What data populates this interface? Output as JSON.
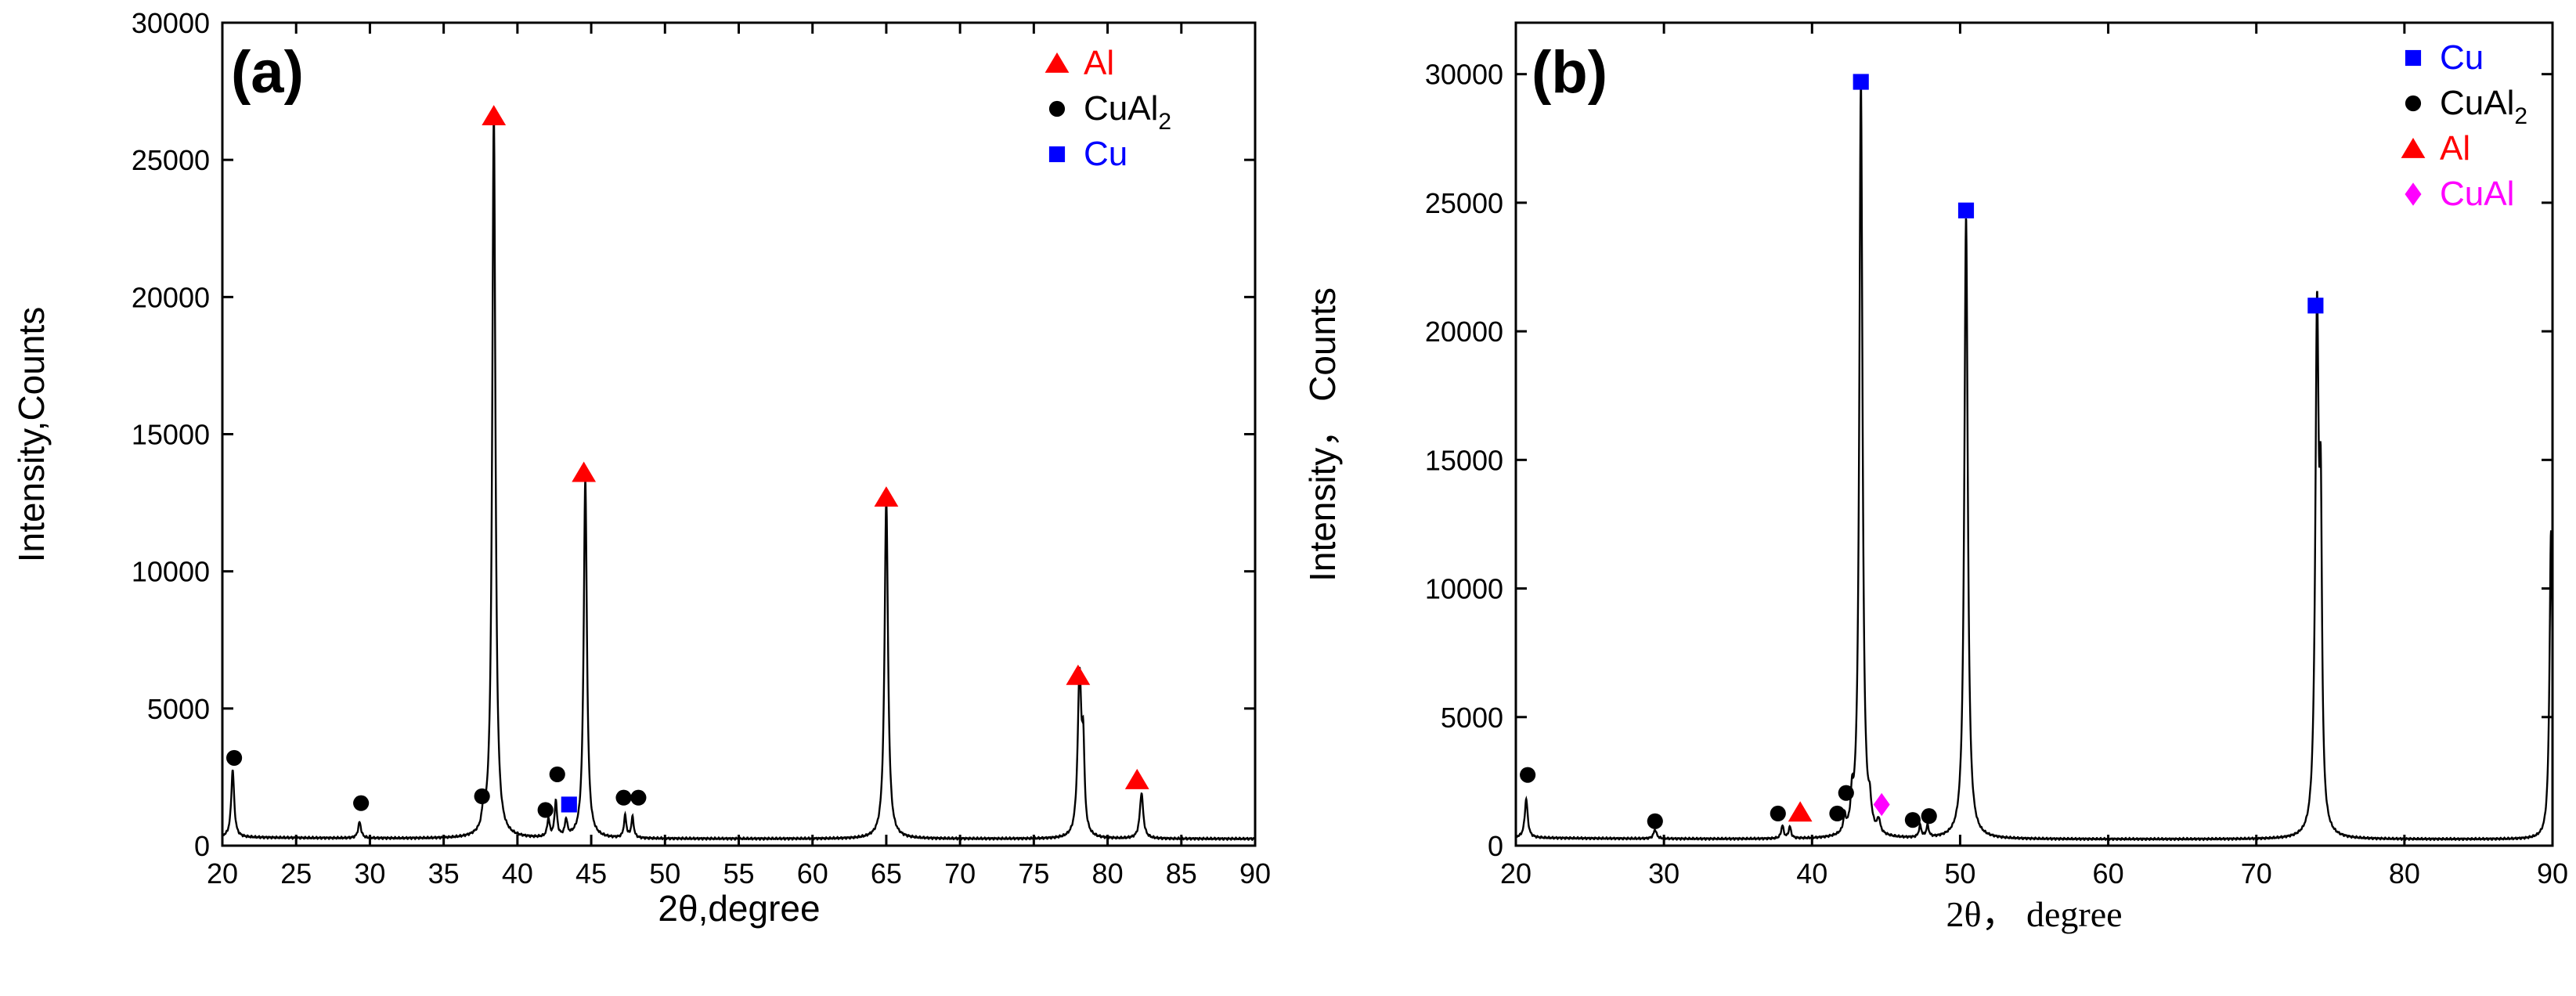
{
  "chart_data": [
    {
      "type": "line",
      "panel_label": "(a)",
      "xlabel": "2θ,degree",
      "ylabel": "Intensity,Counts",
      "xlim": [
        20,
        90
      ],
      "ylim": [
        0,
        30000
      ],
      "xticks": [
        20,
        25,
        30,
        35,
        40,
        45,
        50,
        55,
        60,
        65,
        70,
        75,
        80,
        85,
        90
      ],
      "yticks": [
        0,
        5000,
        10000,
        15000,
        20000,
        25000,
        30000
      ],
      "baseline": 250,
      "peaks": [
        {
          "x": 20.7,
          "y": 2450,
          "w": 0.12
        },
        {
          "x": 29.3,
          "y": 580,
          "w": 0.12
        },
        {
          "x": 37.7,
          "y": 700,
          "w": 0.12
        },
        {
          "x": 38.4,
          "y": 26500,
          "w": 0.13
        },
        {
          "x": 42.1,
          "y": 650,
          "w": 0.1
        },
        {
          "x": 42.6,
          "y": 1300,
          "w": 0.1
        },
        {
          "x": 43.3,
          "y": 600,
          "w": 0.1
        },
        {
          "x": 44.6,
          "y": 13100,
          "w": 0.13
        },
        {
          "x": 47.3,
          "y": 800,
          "w": 0.1
        },
        {
          "x": 47.8,
          "y": 750,
          "w": 0.1
        },
        {
          "x": 65.0,
          "y": 12400,
          "w": 0.14
        },
        {
          "x": 78.1,
          "y": 5900,
          "w": 0.15
        },
        {
          "x": 78.35,
          "y": 2800,
          "w": 0.1
        },
        {
          "x": 82.3,
          "y": 1650,
          "w": 0.14
        }
      ],
      "markers": [
        {
          "phase": "Al",
          "x": 38.4,
          "y": 26600
        },
        {
          "phase": "Al",
          "x": 44.5,
          "y": 13600
        },
        {
          "phase": "Al",
          "x": 65.0,
          "y": 12700
        },
        {
          "phase": "Al",
          "x": 78.0,
          "y": 6200
        },
        {
          "phase": "Al",
          "x": 82.0,
          "y": 2400
        },
        {
          "phase": "CuAl2",
          "x": 20.8,
          "y": 3200
        },
        {
          "phase": "CuAl2",
          "x": 29.4,
          "y": 1550
        },
        {
          "phase": "CuAl2",
          "x": 37.6,
          "y": 1800
        },
        {
          "phase": "CuAl2",
          "x": 41.9,
          "y": 1300
        },
        {
          "phase": "CuAl2",
          "x": 42.7,
          "y": 2600
        },
        {
          "phase": "CuAl2",
          "x": 47.2,
          "y": 1750
        },
        {
          "phase": "CuAl2",
          "x": 48.2,
          "y": 1750
        },
        {
          "phase": "Cu",
          "x": 43.5,
          "y": 1500
        }
      ],
      "legend": [
        {
          "phase": "Al",
          "label": "Al",
          "sub": ""
        },
        {
          "phase": "CuAl2",
          "label": "CuAl",
          "sub": "2"
        },
        {
          "phase": "Cu",
          "label": "Cu",
          "sub": ""
        }
      ]
    },
    {
      "type": "line",
      "panel_label": "(b)",
      "xlabel": "2θ， degree",
      "ylabel": "Intensity， Counts",
      "xlim": [
        20,
        90
      ],
      "ylim": [
        0,
        32000
      ],
      "xticks": [
        20,
        30,
        40,
        50,
        60,
        70,
        80,
        90
      ],
      "yticks": [
        0,
        5000,
        10000,
        15000,
        20000,
        25000,
        30000
      ],
      "baseline": 250,
      "peaks": [
        {
          "x": 20.7,
          "y": 1500,
          "w": 0.12
        },
        {
          "x": 29.4,
          "y": 350,
          "w": 0.12
        },
        {
          "x": 38.0,
          "y": 500,
          "w": 0.1
        },
        {
          "x": 38.5,
          "y": 450,
          "w": 0.1
        },
        {
          "x": 42.2,
          "y": 600,
          "w": 0.1
        },
        {
          "x": 42.7,
          "y": 1100,
          "w": 0.1
        },
        {
          "x": 43.3,
          "y": 29400,
          "w": 0.13
        },
        {
          "x": 43.9,
          "y": 800,
          "w": 0.12
        },
        {
          "x": 44.5,
          "y": 500,
          "w": 0.12
        },
        {
          "x": 47.3,
          "y": 450,
          "w": 0.1
        },
        {
          "x": 47.8,
          "y": 450,
          "w": 0.1
        },
        {
          "x": 50.4,
          "y": 24200,
          "w": 0.14
        },
        {
          "x": 74.1,
          "y": 19900,
          "w": 0.14
        },
        {
          "x": 74.35,
          "y": 10500,
          "w": 0.1
        },
        {
          "x": 89.9,
          "y": 12000,
          "w": 0.12
        }
      ],
      "markers": [
        {
          "phase": "Cu",
          "x": 43.3,
          "y": 29700
        },
        {
          "phase": "Cu",
          "x": 50.4,
          "y": 24700
        },
        {
          "phase": "Cu",
          "x": 74.0,
          "y": 21000
        },
        {
          "phase": "CuAl2",
          "x": 20.8,
          "y": 2750
        },
        {
          "phase": "CuAl2",
          "x": 29.4,
          "y": 950
        },
        {
          "phase": "CuAl2",
          "x": 37.7,
          "y": 1250
        },
        {
          "phase": "CuAl2",
          "x": 41.7,
          "y": 1250
        },
        {
          "phase": "CuAl2",
          "x": 42.3,
          "y": 2050
        },
        {
          "phase": "CuAl2",
          "x": 46.8,
          "y": 1000
        },
        {
          "phase": "CuAl2",
          "x": 47.9,
          "y": 1150
        },
        {
          "phase": "Al",
          "x": 39.2,
          "y": 1300
        },
        {
          "phase": "CuAl",
          "x": 44.7,
          "y": 1600
        }
      ],
      "legend": [
        {
          "phase": "Cu",
          "label": "Cu",
          "sub": ""
        },
        {
          "phase": "CuAl2",
          "label": "CuAl",
          "sub": "2"
        },
        {
          "phase": "Al",
          "label": "Al",
          "sub": ""
        },
        {
          "phase": "CuAl",
          "label": "CuAl",
          "sub": ""
        }
      ]
    }
  ],
  "colors": {
    "axes": "#000000",
    "trace": "#000000",
    "Al": "#ff0000",
    "CuAl2": "#000000",
    "Cu": "#0000ff",
    "CuAl": "#ff00ff",
    "legend_text": {
      "Al": "#ff0000",
      "CuAl2": "#000000",
      "Cu": "#0000ff",
      "CuAl": "#ff00ff"
    }
  },
  "marker_shapes": {
    "Al": "triangle",
    "CuAl2": "circle",
    "Cu": "square",
    "CuAl": "diamond"
  }
}
